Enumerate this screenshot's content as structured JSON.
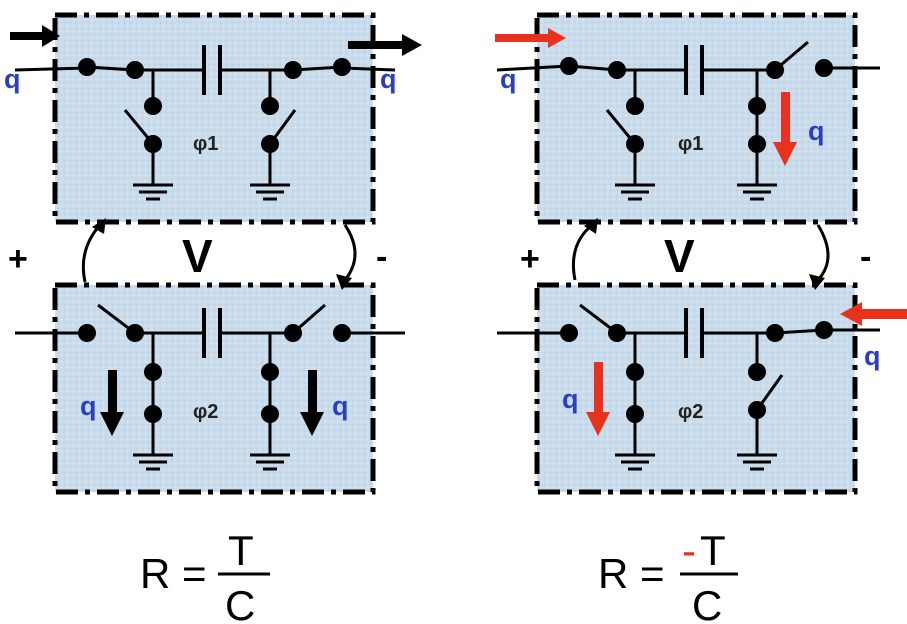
{
  "labels": {
    "charge": "q",
    "phase1": "φ1",
    "phase2": "φ2",
    "plus": "+",
    "minus": "-",
    "voltage": "V"
  },
  "formulas": {
    "left": {
      "lhs": "R =",
      "numerator": "T",
      "denominator": "C"
    },
    "right": {
      "lhs": "R =",
      "numerator_sign": "-",
      "numerator": "T",
      "denominator": "C"
    }
  },
  "colors": {
    "panel_fill": "#c9dcec",
    "wire": "#000000",
    "charge_label": "#2b3fc4",
    "red_arrow": "#e8321e",
    "black_arrow": "#000000"
  }
}
